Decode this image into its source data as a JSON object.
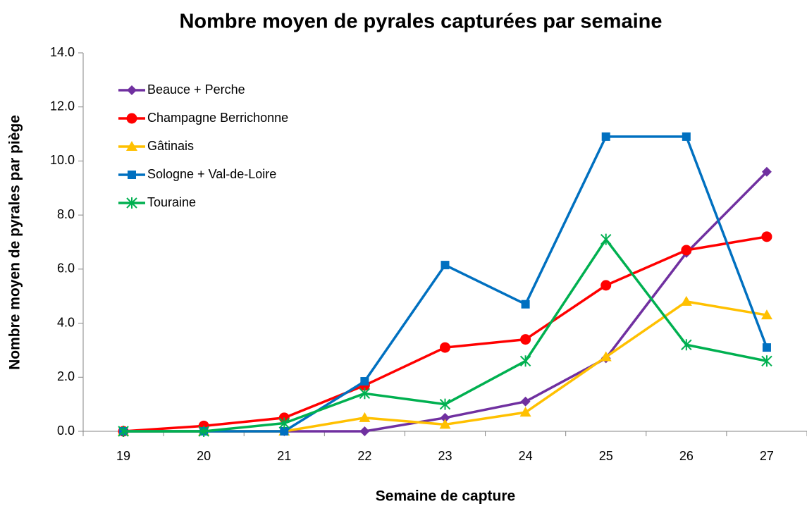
{
  "chart_data": {
    "type": "line",
    "title": "Nombre moyen de pyrales capturées par semaine",
    "x_label": "Semaine de capture",
    "y_label": "Nombre moyen de pyrales par piège",
    "categories": [
      "19",
      "20",
      "21",
      "22",
      "23",
      "24",
      "25",
      "26",
      "27"
    ],
    "series": [
      {
        "name": "Beauce + Perche",
        "color": "#7030a0",
        "marker": "diamond",
        "values": [
          0,
          0,
          0,
          0,
          0.5,
          1.1,
          2.7,
          6.6,
          9.6
        ]
      },
      {
        "name": "Champagne Berrichonne",
        "color": "#ff0000",
        "marker": "circle",
        "values": [
          0,
          0.2,
          0.5,
          1.7,
          3.1,
          3.4,
          5.4,
          6.7,
          7.2
        ]
      },
      {
        "name": "Gâtinais",
        "color": "#ffc000",
        "marker": "triangle",
        "values": [
          0,
          0,
          0,
          0.5,
          0.25,
          0.7,
          2.75,
          4.8,
          4.3
        ]
      },
      {
        "name": "Sologne + Val-de-Loire",
        "color": "#0070c0",
        "marker": "square",
        "values": [
          0,
          0,
          0,
          1.85,
          6.15,
          4.7,
          10.9,
          10.9,
          3.1
        ]
      },
      {
        "name": "Touraine",
        "color": "#00b050",
        "marker": "star",
        "values": [
          0,
          0,
          0.3,
          1.4,
          1.0,
          2.6,
          7.1,
          3.2,
          2.6
        ]
      }
    ],
    "ylim": [
      0,
      14
    ],
    "yticks": [
      {
        "value": 0,
        "label": "0.0"
      },
      {
        "value": 2,
        "label": "2.0"
      },
      {
        "value": 4,
        "label": "4.0"
      },
      {
        "value": 6,
        "label": "6.0"
      },
      {
        "value": 8,
        "label": "8.0"
      },
      {
        "value": 10,
        "label": "10.0"
      },
      {
        "value": 12,
        "label": "12.0"
      },
      {
        "value": 14,
        "label": "14.0"
      }
    ],
    "grid": false,
    "legend": "upper left"
  }
}
